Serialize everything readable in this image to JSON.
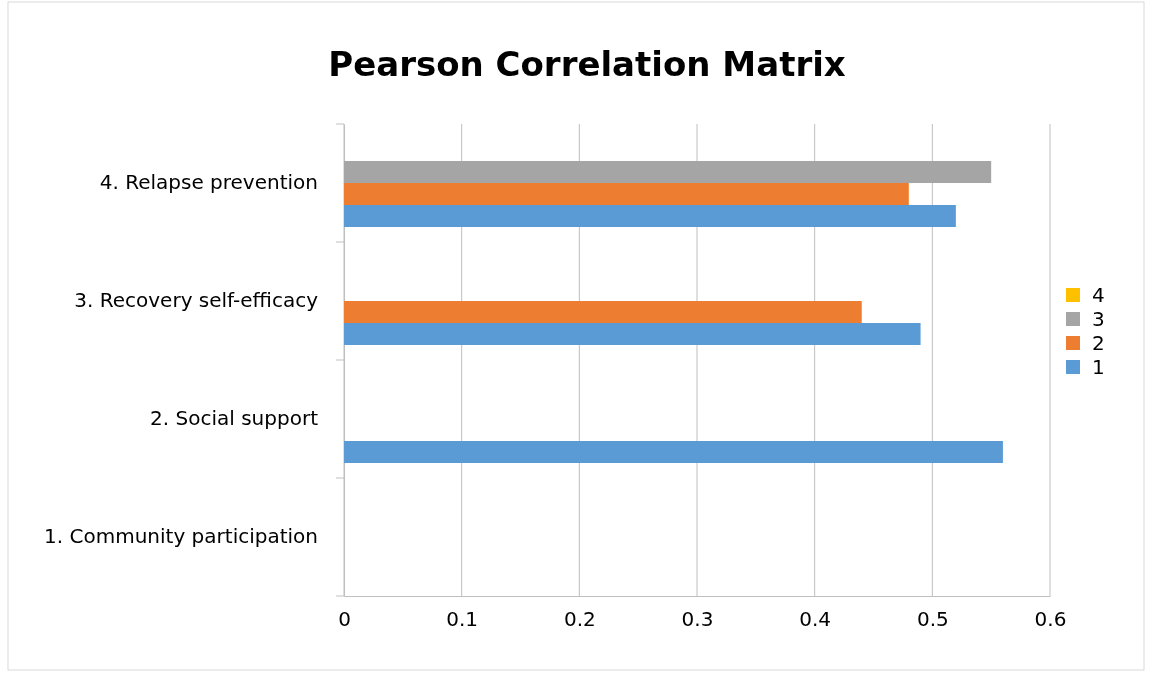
{
  "chart_data": {
    "type": "bar",
    "orientation": "horizontal",
    "title": "Pearson Correlation Matrix",
    "categories": [
      "4. Relapse prevention",
      "3. Recovery self-efficacy",
      "2. Social support",
      "1. Community participation"
    ],
    "series": [
      {
        "name": "1",
        "color": "#5b9bd5",
        "values": [
          0.52,
          0.49,
          0.56,
          null
        ]
      },
      {
        "name": "2",
        "color": "#ed7d31",
        "values": [
          0.48,
          0.44,
          null,
          null
        ]
      },
      {
        "name": "3",
        "color": "#a5a5a5",
        "values": [
          0.55,
          null,
          null,
          null
        ]
      },
      {
        "name": "4",
        "color": "#ffc000",
        "values": [
          null,
          null,
          null,
          null
        ]
      }
    ],
    "xlim": [
      0,
      0.6
    ],
    "xticks": [
      0,
      0.1,
      0.2,
      0.3,
      0.4,
      0.5,
      0.6
    ],
    "grid": "x",
    "legend": "right"
  }
}
